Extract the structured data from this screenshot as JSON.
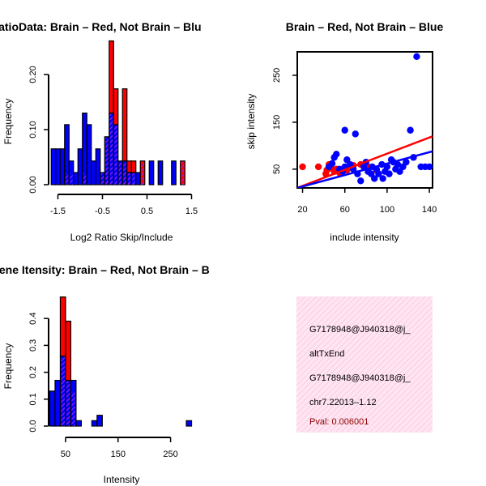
{
  "colors": {
    "red": "#ff0000",
    "blue": "#0000ff",
    "purple_hatch": "#a020f0",
    "info_bg": "#ffe4f1",
    "info_hatch": "#f2b8d6",
    "pval": "#8b0000"
  },
  "chart_data": [
    {
      "type": "histogram",
      "title": "RatioData: Brain – Red, Not Brain – Blu",
      "xlabel": "Log2 Ratio Skip/Include",
      "ylabel": "Frequency",
      "xlim": [
        -1.8,
        1.6
      ],
      "ylim": [
        0,
        0.25
      ],
      "xticks": [
        -1.5,
        -0.5,
        0.5,
        1.5
      ],
      "xtick_labels": [
        "-1.5",
        "-0.5",
        "0.5",
        "1.5"
      ],
      "yticks": [
        0.0,
        0.1,
        0.2
      ],
      "ytick_labels": [
        "0.00",
        "0.10",
        "0.20"
      ],
      "bin_width": 0.1,
      "series": [
        {
          "name": "Not Brain",
          "color": "blue",
          "bars": [
            {
              "x0": -1.65,
              "x1": -1.55,
              "v": 0.065
            },
            {
              "x0": -1.55,
              "x1": -1.45,
              "v": 0.065
            },
            {
              "x0": -1.45,
              "x1": -1.35,
              "v": 0.065
            },
            {
              "x0": -1.35,
              "x1": -1.25,
              "v": 0.109
            },
            {
              "x0": -1.25,
              "x1": -1.15,
              "v": 0.043
            },
            {
              "x0": -1.15,
              "x1": -1.05,
              "v": 0.022
            },
            {
              "x0": -1.05,
              "x1": -0.95,
              "v": 0.065
            },
            {
              "x0": -0.95,
              "x1": -0.85,
              "v": 0.13
            },
            {
              "x0": -0.85,
              "x1": -0.75,
              "v": 0.109
            },
            {
              "x0": -0.75,
              "x1": -0.65,
              "v": 0.043
            },
            {
              "x0": -0.65,
              "x1": -0.55,
              "v": 0.065
            },
            {
              "x0": -0.55,
              "x1": -0.45,
              "v": 0.022
            },
            {
              "x0": -0.45,
              "x1": -0.35,
              "v": 0.087
            },
            {
              "x0": -0.35,
              "x1": -0.25,
              "v": 0.13
            },
            {
              "x0": -0.25,
              "x1": -0.15,
              "v": 0.109
            },
            {
              "x0": -0.15,
              "x1": -0.05,
              "v": 0.043
            },
            {
              "x0": -0.05,
              "x1": 0.05,
              "v": 0.043
            },
            {
              "x0": 0.05,
              "x1": 0.15,
              "v": 0.022
            },
            {
              "x0": 0.15,
              "x1": 0.25,
              "v": 0.022
            },
            {
              "x0": 0.25,
              "x1": 0.35,
              "v": 0.022
            },
            {
              "x0": 0.55,
              "x1": 0.65,
              "v": 0.043
            },
            {
              "x0": 0.75,
              "x1": 0.85,
              "v": 0.043
            },
            {
              "x0": 1.05,
              "x1": 1.15,
              "v": 0.043
            }
          ]
        },
        {
          "name": "Brain",
          "color": "red",
          "bars": [
            {
              "x0": -1.35,
              "x1": -1.25,
              "v": 0.022
            },
            {
              "x0": -1.25,
              "x1": -1.15,
              "v": 0.022
            },
            {
              "x0": -0.95,
              "x1": -0.85,
              "v": 0.022
            },
            {
              "x0": -0.55,
              "x1": -0.45,
              "v": 0.022
            },
            {
              "x0": -0.45,
              "x1": -0.35,
              "v": 0.087
            },
            {
              "x0": -0.35,
              "x1": -0.25,
              "v": 0.261
            },
            {
              "x0": -0.25,
              "x1": -0.15,
              "v": 0.174
            },
            {
              "x0": -0.15,
              "x1": -0.05,
              "v": 0.043
            },
            {
              "x0": -0.05,
              "x1": 0.05,
              "v": 0.174
            },
            {
              "x0": 0.05,
              "x1": 0.15,
              "v": 0.043
            },
            {
              "x0": 0.15,
              "x1": 0.25,
              "v": 0.043
            },
            {
              "x0": 0.35,
              "x1": 0.45,
              "v": 0.043
            },
            {
              "x0": 1.25,
              "x1": 1.35,
              "v": 0.043
            }
          ]
        }
      ]
    },
    {
      "type": "scatter",
      "title": "Brain – Red, Not Brain – Blue",
      "xlabel": "include intensity",
      "ylabel": "skip intensity",
      "xlim": [
        15,
        143
      ],
      "ylim": [
        10,
        300
      ],
      "xticks": [
        20,
        60,
        100,
        140
      ],
      "xtick_labels": [
        "20",
        "60",
        "100",
        "140"
      ],
      "yticks": [
        50,
        150,
        250
      ],
      "ytick_labels": [
        "50",
        "150",
        "250"
      ],
      "series": [
        {
          "name": "Brain",
          "color": "red",
          "points": [
            [
              20,
              55
            ],
            [
              35,
              55
            ],
            [
              42,
              40
            ],
            [
              43,
              48
            ],
            [
              45,
              60
            ],
            [
              47,
              52
            ],
            [
              50,
              45
            ],
            [
              52,
              50
            ],
            [
              55,
              42
            ],
            [
              62,
              48
            ],
            [
              68,
              58
            ],
            [
              75,
              60
            ],
            [
              82,
              55
            ],
            [
              90,
              48
            ]
          ],
          "fit_line": [
            [
              15,
              10
            ],
            [
              143,
              120
            ]
          ]
        },
        {
          "name": "Not Brain",
          "color": "blue",
          "points": [
            [
              45,
              55
            ],
            [
              48,
              62
            ],
            [
              50,
              75
            ],
            [
              52,
              82
            ],
            [
              55,
              50
            ],
            [
              58,
              45
            ],
            [
              60,
              55
            ],
            [
              60,
              133
            ],
            [
              62,
              70
            ],
            [
              65,
              60
            ],
            [
              68,
              50
            ],
            [
              70,
              125
            ],
            [
              72,
              40
            ],
            [
              75,
              25
            ],
            [
              78,
              55
            ],
            [
              80,
              65
            ],
            [
              82,
              45
            ],
            [
              85,
              40
            ],
            [
              86,
              55
            ],
            [
              88,
              30
            ],
            [
              90,
              50
            ],
            [
              92,
              40
            ],
            [
              95,
              60
            ],
            [
              96,
              30
            ],
            [
              98,
              45
            ],
            [
              100,
              55
            ],
            [
              102,
              40
            ],
            [
              104,
              70
            ],
            [
              106,
              65
            ],
            [
              108,
              50
            ],
            [
              110,
              60
            ],
            [
              112,
              45
            ],
            [
              115,
              55
            ],
            [
              118,
              65
            ],
            [
              122,
              133
            ],
            [
              125,
              75
            ],
            [
              128,
              290
            ],
            [
              132,
              55
            ],
            [
              136,
              55
            ],
            [
              140,
              55
            ]
          ],
          "fit_line": [
            [
              15,
              10
            ],
            [
              143,
              88
            ]
          ]
        }
      ]
    },
    {
      "type": "histogram",
      "title": "Gene Itensity: Brain – Red, Not Brain – B",
      "xlabel": "Intensity",
      "ylabel": "Frequency",
      "xlim": [
        10,
        300
      ],
      "ylim": [
        0,
        0.5
      ],
      "xticks": [
        50,
        150,
        250
      ],
      "xtick_labels": [
        "50",
        "150",
        "250"
      ],
      "yticks": [
        0.0,
        0.1,
        0.2,
        0.3,
        0.4
      ],
      "ytick_labels": [
        "0.0",
        "0.1",
        "0.2",
        "0.3",
        "0.4"
      ],
      "bin_width": 10,
      "series": [
        {
          "name": "Not Brain",
          "color": "blue",
          "bars": [
            {
              "x0": 20,
              "x1": 30,
              "v": 0.13
            },
            {
              "x0": 30,
              "x1": 40,
              "v": 0.17
            },
            {
              "x0": 40,
              "x1": 50,
              "v": 0.26
            },
            {
              "x0": 50,
              "x1": 60,
              "v": 0.17
            },
            {
              "x0": 60,
              "x1": 70,
              "v": 0.17
            },
            {
              "x0": 70,
              "x1": 80,
              "v": 0.02
            },
            {
              "x0": 100,
              "x1": 110,
              "v": 0.02
            },
            {
              "x0": 110,
              "x1": 120,
              "v": 0.04
            },
            {
              "x0": 280,
              "x1": 290,
              "v": 0.02
            }
          ]
        },
        {
          "name": "Brain",
          "color": "red",
          "bars": [
            {
              "x0": 40,
              "x1": 50,
              "v": 0.48
            },
            {
              "x0": 50,
              "x1": 60,
              "v": 0.39
            },
            {
              "x0": 60,
              "x1": 70,
              "v": 0.13
            }
          ]
        }
      ]
    }
  ],
  "info_panel": {
    "lines": [
      "G7178948@J940318@j_",
      "altTxEnd",
      "G7178948@J940318@j_",
      "chr7.22013–1.12"
    ],
    "pval": "Pval: 0.006001"
  }
}
